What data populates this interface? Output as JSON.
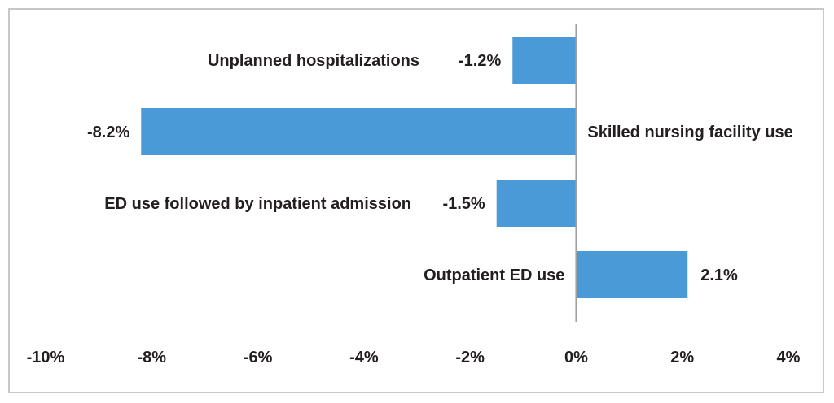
{
  "chart_data": {
    "type": "bar",
    "orientation": "horizontal",
    "categories": [
      "Unplanned hospitalizations",
      "Skilled nursing facility use",
      "ED use followed by inpatient admission",
      "Outpatient ED use"
    ],
    "values": [
      -1.2,
      -8.2,
      -1.5,
      2.1
    ],
    "value_labels": [
      "-1.2%",
      "-8.2%",
      "-1.5%",
      "2.1%"
    ],
    "xlim": [
      -10,
      4
    ],
    "xticks": [
      -10,
      -8,
      -6,
      -4,
      -2,
      0,
      2,
      4
    ],
    "xtick_labels": [
      "-10%",
      "-8%",
      "-6%",
      "-4%",
      "-2%",
      "0%",
      "2%",
      "4%"
    ],
    "bar_color": "#4a9ad8",
    "axis_color": "#a0a0a0",
    "grid": false,
    "legend": "none",
    "title": "",
    "xlabel": "",
    "ylabel": ""
  }
}
